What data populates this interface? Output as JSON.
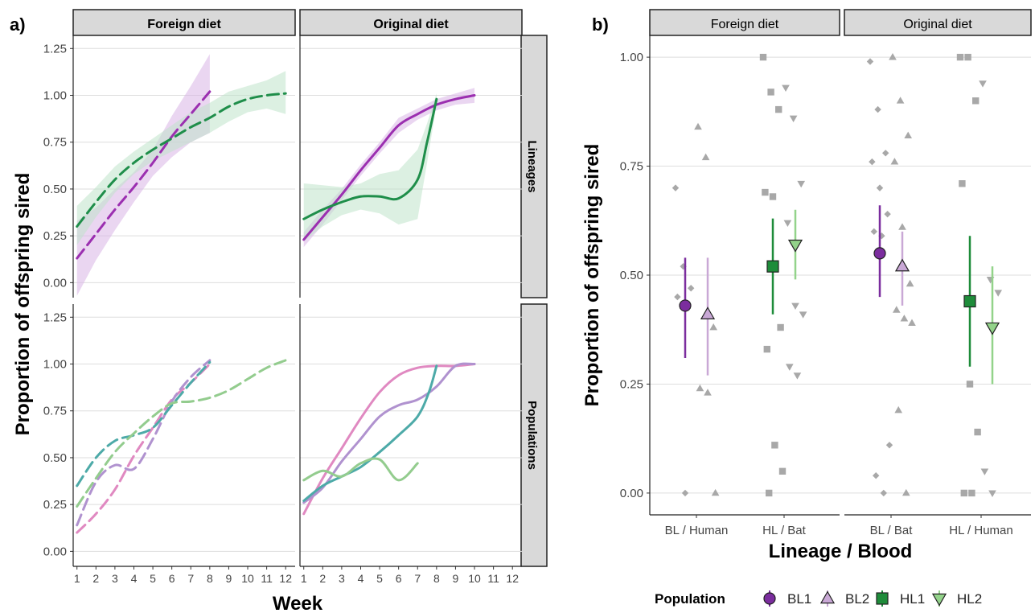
{
  "panel_a": {
    "tag": "a)",
    "ylabel": "Proportion of offspring sired",
    "xlabel": "Week",
    "diet_strips": [
      "Foreign diet",
      "Original diet"
    ],
    "row_strips": [
      "Lineages",
      "Populations"
    ],
    "ytick_labels": [
      "0.00",
      "0.25",
      "0.50",
      "0.75",
      "1.00",
      "1.25"
    ],
    "xtick_labels": [
      "1",
      "2",
      "3",
      "4",
      "5",
      "6",
      "7",
      "8",
      "9",
      "10",
      "11",
      "12"
    ]
  },
  "panel_b": {
    "tag": "b)",
    "ylabel": "Proportion of offspring sired",
    "xlabel": "Lineage / Blood",
    "diet_strips": [
      "Foreign diet",
      "Original diet"
    ],
    "ytick_labels": [
      "0.00",
      "0.25",
      "0.50",
      "0.75",
      "1.00"
    ],
    "xtick_labels": [
      "BL / Human",
      "HL / Bat",
      "BL / Bat",
      "HL / Human"
    ]
  },
  "legend": {
    "title": "Population",
    "items": [
      {
        "label": "BL1",
        "color": "#7B2D9E",
        "shape": "circle"
      },
      {
        "label": "BL2",
        "color": "#C9A8D6",
        "shape": "triangle-up"
      },
      {
        "label": "HL1",
        "color": "#1E8C3A",
        "shape": "square"
      },
      {
        "label": "HL2",
        "color": "#93D38A",
        "shape": "triangle-down"
      }
    ]
  },
  "colors": {
    "bl_lineage": "#9B2FB0",
    "hl_lineage": "#1F8E4A",
    "bl_band": "#D9B5E6",
    "hl_band": "#BFE3CB",
    "pop_pink": "#E089C1",
    "pop_lilac": "#B092CF",
    "pop_teal": "#4DAAA8",
    "pop_green": "#93CC8E",
    "strip_fill": "#D9D9D9",
    "grid": "#DEDEDE",
    "raw_points": "#A8A8A8"
  },
  "chart_data": [
    {
      "type": "line",
      "panel": "a",
      "facet_row": "Lineages",
      "facet_col": "Foreign diet",
      "x_label": "Week",
      "ylim": [
        -0.08,
        1.32
      ],
      "xlim": [
        0.8,
        12.5
      ],
      "line_style": "dashed",
      "series": [
        {
          "color_key": "bl_lineage",
          "band_color_key": "bl_band",
          "x": [
            1,
            2,
            3,
            4,
            5,
            6,
            7,
            8
          ],
          "y": [
            0.13,
            0.26,
            0.39,
            0.51,
            0.64,
            0.78,
            0.9,
            1.02
          ],
          "lo": [
            -0.07,
            0.12,
            0.28,
            0.43,
            0.57,
            0.67,
            0.75,
            0.8
          ],
          "hi": [
            0.33,
            0.4,
            0.5,
            0.59,
            0.71,
            0.89,
            1.05,
            1.22
          ]
        },
        {
          "color_key": "hl_lineage",
          "band_color_key": "hl_band",
          "x": [
            1,
            2,
            3,
            4,
            5,
            6,
            7,
            8,
            9,
            10,
            11,
            12
          ],
          "y": [
            0.3,
            0.43,
            0.55,
            0.64,
            0.71,
            0.77,
            0.83,
            0.88,
            0.94,
            0.98,
            1.0,
            1.01
          ],
          "lo": [
            0.2,
            0.35,
            0.48,
            0.58,
            0.65,
            0.7,
            0.75,
            0.8,
            0.86,
            0.91,
            0.93,
            0.9
          ],
          "hi": [
            0.41,
            0.51,
            0.62,
            0.7,
            0.77,
            0.84,
            0.91,
            0.96,
            1.02,
            1.05,
            1.08,
            1.13
          ]
        }
      ]
    },
    {
      "type": "line",
      "panel": "a",
      "facet_row": "Lineages",
      "facet_col": "Original diet",
      "ylim": [
        -0.08,
        1.32
      ],
      "xlim": [
        0.8,
        12.5
      ],
      "line_style": "solid",
      "series": [
        {
          "color_key": "bl_lineage",
          "band_color_key": "bl_band",
          "x": [
            1,
            2,
            3,
            4,
            5,
            6,
            7,
            8,
            9,
            10
          ],
          "y": [
            0.23,
            0.35,
            0.47,
            0.6,
            0.72,
            0.84,
            0.9,
            0.95,
            0.98,
            1.0
          ],
          "lo": [
            0.19,
            0.31,
            0.44,
            0.57,
            0.69,
            0.8,
            0.87,
            0.92,
            0.95,
            0.96
          ],
          "hi": [
            0.27,
            0.39,
            0.5,
            0.63,
            0.75,
            0.88,
            0.93,
            0.98,
            1.01,
            1.04
          ]
        },
        {
          "color_key": "hl_lineage",
          "band_color_key": "hl_band",
          "x": [
            1,
            2,
            3,
            4,
            5,
            6,
            7,
            7.5,
            8
          ],
          "y": [
            0.34,
            0.39,
            0.43,
            0.46,
            0.46,
            0.45,
            0.55,
            0.75,
            0.98
          ],
          "lo": [
            0.22,
            0.3,
            0.36,
            0.39,
            0.37,
            0.31,
            0.34,
            0.64,
            0.95
          ],
          "hi": [
            0.53,
            0.52,
            0.51,
            0.53,
            0.58,
            0.6,
            0.71,
            0.85,
            1.01
          ]
        }
      ]
    },
    {
      "type": "line",
      "panel": "a",
      "facet_row": "Populations",
      "facet_col": "Foreign diet",
      "ylim": [
        -0.08,
        1.32
      ],
      "xlim": [
        0.8,
        12.5
      ],
      "line_style": "dashed",
      "series": [
        {
          "color_key": "pop_pink",
          "x": [
            1,
            2,
            3,
            4,
            5,
            6,
            7,
            8
          ],
          "y": [
            0.1,
            0.2,
            0.33,
            0.51,
            0.66,
            0.81,
            0.9,
            1.0
          ]
        },
        {
          "color_key": "pop_lilac",
          "x": [
            1,
            2,
            3,
            4,
            5,
            6,
            7,
            8
          ],
          "y": [
            0.14,
            0.37,
            0.46,
            0.44,
            0.6,
            0.8,
            0.93,
            1.02
          ]
        },
        {
          "color_key": "pop_teal",
          "x": [
            1,
            2,
            3,
            4,
            5,
            6,
            7,
            8
          ],
          "y": [
            0.35,
            0.5,
            0.59,
            0.62,
            0.66,
            0.78,
            0.9,
            1.01
          ]
        },
        {
          "color_key": "pop_green",
          "x": [
            1,
            2,
            3,
            4,
            5,
            6,
            7,
            8,
            9,
            10,
            11,
            12
          ],
          "y": [
            0.24,
            0.39,
            0.53,
            0.63,
            0.72,
            0.79,
            0.8,
            0.82,
            0.86,
            0.92,
            0.98,
            1.02
          ]
        }
      ]
    },
    {
      "type": "line",
      "panel": "a",
      "facet_row": "Populations",
      "facet_col": "Original diet",
      "ylim": [
        -0.08,
        1.32
      ],
      "xlim": [
        0.8,
        12.5
      ],
      "line_style": "solid",
      "series": [
        {
          "color_key": "pop_pink",
          "x": [
            1,
            2,
            3,
            4,
            5,
            6,
            7,
            8,
            9,
            10
          ],
          "y": [
            0.2,
            0.39,
            0.55,
            0.71,
            0.85,
            0.94,
            0.98,
            0.99,
            0.99,
            1.0
          ]
        },
        {
          "color_key": "pop_lilac",
          "x": [
            1,
            2,
            3,
            4,
            5,
            6,
            7,
            8,
            9,
            10
          ],
          "y": [
            0.26,
            0.34,
            0.48,
            0.6,
            0.72,
            0.78,
            0.81,
            0.88,
            0.99,
            1.0
          ]
        },
        {
          "color_key": "pop_teal",
          "x": [
            1,
            2,
            3,
            4,
            5,
            6,
            7,
            7.6,
            8
          ],
          "y": [
            0.27,
            0.35,
            0.4,
            0.45,
            0.53,
            0.62,
            0.72,
            0.85,
            0.99
          ]
        },
        {
          "color_key": "pop_green",
          "x": [
            1,
            2,
            3,
            4,
            5,
            6,
            7
          ],
          "y": [
            0.38,
            0.43,
            0.4,
            0.47,
            0.49,
            0.38,
            0.47
          ]
        }
      ]
    },
    {
      "type": "scatter",
      "panel": "b",
      "y_label": "Proportion of offspring sired",
      "ylim": [
        -0.05,
        1.05
      ],
      "categories": [
        "BL / Human",
        "HL / Bat",
        "BL / Bat",
        "HL / Human"
      ],
      "facet_of_category": [
        "Foreign diet",
        "Foreign diet",
        "Original diet",
        "Original diet"
      ],
      "summary": [
        {
          "population": "BL1",
          "category": "BL / Human",
          "mean": 0.43,
          "lo": 0.31,
          "hi": 0.54
        },
        {
          "population": "BL2",
          "category": "BL / Human",
          "mean": 0.41,
          "lo": 0.27,
          "hi": 0.54
        },
        {
          "population": "HL1",
          "category": "HL / Bat",
          "mean": 0.52,
          "lo": 0.41,
          "hi": 0.63
        },
        {
          "population": "HL2",
          "category": "HL / Bat",
          "mean": 0.57,
          "lo": 0.49,
          "hi": 0.65
        },
        {
          "population": "BL1",
          "category": "BL / Bat",
          "mean": 0.55,
          "lo": 0.45,
          "hi": 0.66
        },
        {
          "population": "BL2",
          "category": "BL / Bat",
          "mean": 0.52,
          "lo": 0.43,
          "hi": 0.6
        },
        {
          "population": "HL1",
          "category": "HL / Human",
          "mean": 0.44,
          "lo": 0.29,
          "hi": 0.59
        },
        {
          "population": "HL2",
          "category": "HL / Human",
          "mean": 0.38,
          "lo": 0.25,
          "hi": 0.52
        }
      ],
      "raw_points": [
        {
          "population": "BL1",
          "category": "BL / Human",
          "y": [
            0.7,
            0.52,
            0.47,
            0.45,
            0.0
          ]
        },
        {
          "population": "BL2",
          "category": "BL / Human",
          "y": [
            0.84,
            0.77,
            0.38,
            0.24,
            0.23,
            0.0
          ]
        },
        {
          "population": "HL1",
          "category": "HL / Bat",
          "y": [
            1.0,
            0.92,
            0.88,
            0.69,
            0.68,
            0.38,
            0.33,
            0.11,
            0.05,
            0.0
          ]
        },
        {
          "population": "HL2",
          "category": "HL / Bat",
          "y": [
            0.93,
            0.86,
            0.71,
            0.62,
            0.43,
            0.41,
            0.29,
            0.27
          ]
        },
        {
          "population": "BL1",
          "category": "BL / Bat",
          "y": [
            0.99,
            0.88,
            0.78,
            0.76,
            0.7,
            0.64,
            0.6,
            0.59,
            0.11,
            0.04,
            0.0
          ]
        },
        {
          "population": "BL2",
          "category": "BL / Bat",
          "y": [
            1.0,
            0.9,
            0.82,
            0.76,
            0.61,
            0.48,
            0.42,
            0.4,
            0.39,
            0.19,
            0.0
          ]
        },
        {
          "population": "HL1",
          "category": "HL / Human",
          "y": [
            1.0,
            1.0,
            0.9,
            0.71,
            0.25,
            0.14,
            0.0,
            0.0
          ]
        },
        {
          "population": "HL2",
          "category": "HL / Human",
          "y": [
            0.94,
            0.49,
            0.46,
            0.05,
            0.0
          ]
        }
      ]
    }
  ]
}
